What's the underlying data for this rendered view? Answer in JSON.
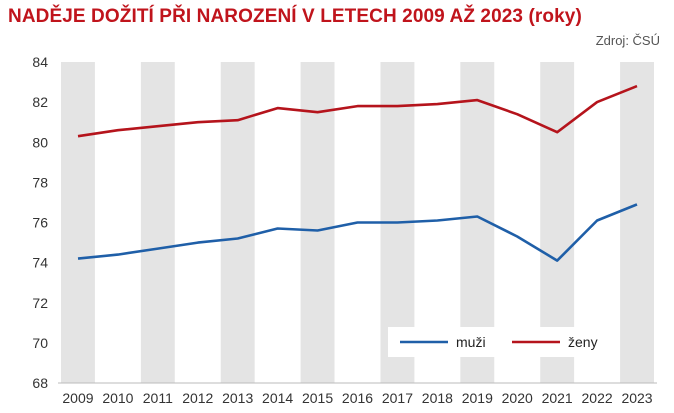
{
  "title": "NADĚJE DOŽITÍ PŘI NAROZENÍ V LETECH 2009 AŽ 2023 (roky)",
  "source": "Zdroj: ČSÚ",
  "chart_data": {
    "type": "line",
    "categories": [
      "2009",
      "2010",
      "2011",
      "2012",
      "2013",
      "2014",
      "2015",
      "2016",
      "2017",
      "2018",
      "2019",
      "2020",
      "2021",
      "2022",
      "2023"
    ],
    "ylim": [
      68,
      84
    ],
    "yticks": [
      68,
      70,
      72,
      74,
      76,
      78,
      80,
      82,
      84
    ],
    "alternating_background_bands": true,
    "legend_position": "bottom-right",
    "series": [
      {
        "name": "muži",
        "color": "#1f5fa8",
        "values": [
          74.2,
          74.4,
          74.7,
          75.0,
          75.2,
          75.7,
          75.6,
          76.0,
          76.0,
          76.1,
          76.3,
          75.3,
          74.1,
          76.1,
          76.9
        ]
      },
      {
        "name": "ženy",
        "color": "#b5141c",
        "values": [
          80.3,
          80.6,
          80.8,
          81.0,
          81.1,
          81.7,
          81.5,
          81.8,
          81.8,
          81.9,
          82.1,
          81.4,
          80.5,
          82.0,
          82.8
        ]
      }
    ]
  }
}
